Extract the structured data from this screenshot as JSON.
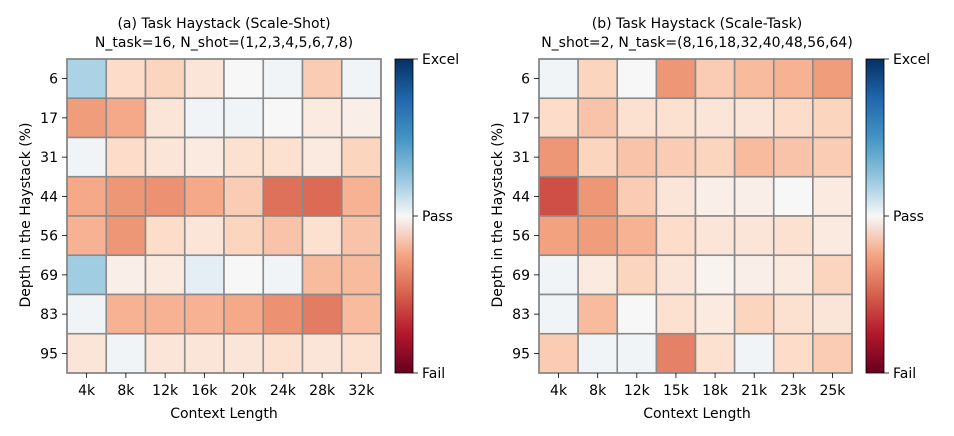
{
  "figure": {
    "colormap": "RdBu",
    "cell_border_color": "#8a8a8a",
    "colorbar_ticks": [
      "Excel",
      "Pass",
      "Fail"
    ]
  },
  "chart_data": [
    {
      "type": "heatmap",
      "title": "(a) Task Haystack (Scale-Shot)",
      "subtitle": "N_task=16, N_shot=(1,2,3,4,5,6,7,8)",
      "xlabel": "Context Length",
      "ylabel": "Depth in the Haystack (%)",
      "x": [
        "4k",
        "8k",
        "12k",
        "16k",
        "20k",
        "24k",
        "28k",
        "32k"
      ],
      "y": [
        "6",
        "17",
        "31",
        "44",
        "56",
        "69",
        "83",
        "95"
      ],
      "value_range": [
        -1,
        1
      ],
      "colorbar": {
        "top": "Excel",
        "middle": "Pass",
        "bottom": "Fail"
      },
      "values": [
        [
          0.2,
          -0.12,
          -0.14,
          -0.08,
          0.0,
          0.02,
          -0.16,
          0.02
        ],
        [
          -0.28,
          -0.24,
          -0.08,
          0.02,
          0.02,
          0.0,
          -0.06,
          -0.04
        ],
        [
          0.02,
          -0.12,
          -0.08,
          -0.06,
          -0.1,
          -0.1,
          -0.06,
          -0.14
        ],
        [
          -0.24,
          -0.3,
          -0.32,
          -0.24,
          -0.16,
          -0.44,
          -0.46,
          -0.22
        ],
        [
          -0.22,
          -0.3,
          -0.12,
          -0.08,
          -0.14,
          -0.18,
          -0.1,
          -0.18
        ],
        [
          0.22,
          -0.04,
          -0.06,
          0.06,
          0.0,
          0.02,
          -0.2,
          -0.2
        ],
        [
          0.02,
          -0.22,
          -0.22,
          -0.22,
          -0.24,
          -0.32,
          -0.4,
          -0.2
        ],
        [
          -0.08,
          0.02,
          -0.08,
          -0.08,
          -0.08,
          -0.1,
          -0.08,
          -0.1
        ]
      ]
    },
    {
      "type": "heatmap",
      "title": "(b) Task Haystack (Scale-Task)",
      "subtitle": "N_shot=2, N_task=(8,16,18,32,40,48,56,64)",
      "xlabel": "Context Length",
      "ylabel": "Depth in the Haystack (%)",
      "x": [
        "4k",
        "8k",
        "12k",
        "15k",
        "18k",
        "21k",
        "23k",
        "25k"
      ],
      "y": [
        "6",
        "17",
        "31",
        "44",
        "56",
        "69",
        "83",
        "95"
      ],
      "value_range": [
        -1,
        1
      ],
      "colorbar": {
        "top": "Excel",
        "middle": "Pass",
        "bottom": "Fail"
      },
      "values": [
        [
          0.02,
          -0.14,
          0.0,
          -0.3,
          -0.16,
          -0.2,
          -0.22,
          -0.28
        ],
        [
          -0.12,
          -0.18,
          -0.1,
          -0.1,
          -0.08,
          -0.08,
          -0.12,
          -0.14
        ],
        [
          -0.3,
          -0.14,
          -0.18,
          -0.16,
          -0.14,
          -0.2,
          -0.18,
          -0.16
        ],
        [
          -0.56,
          -0.3,
          -0.16,
          -0.08,
          -0.04,
          -0.04,
          0.0,
          -0.06
        ],
        [
          -0.26,
          -0.28,
          -0.22,
          -0.12,
          -0.08,
          -0.08,
          -0.1,
          -0.06
        ],
        [
          0.02,
          -0.06,
          -0.14,
          -0.08,
          -0.02,
          -0.04,
          -0.06,
          -0.14
        ],
        [
          0.02,
          -0.2,
          0.0,
          -0.1,
          -0.06,
          -0.14,
          -0.1,
          -0.08
        ],
        [
          -0.16,
          0.02,
          0.02,
          -0.38,
          -0.1,
          0.02,
          -0.12,
          -0.16
        ]
      ]
    }
  ]
}
